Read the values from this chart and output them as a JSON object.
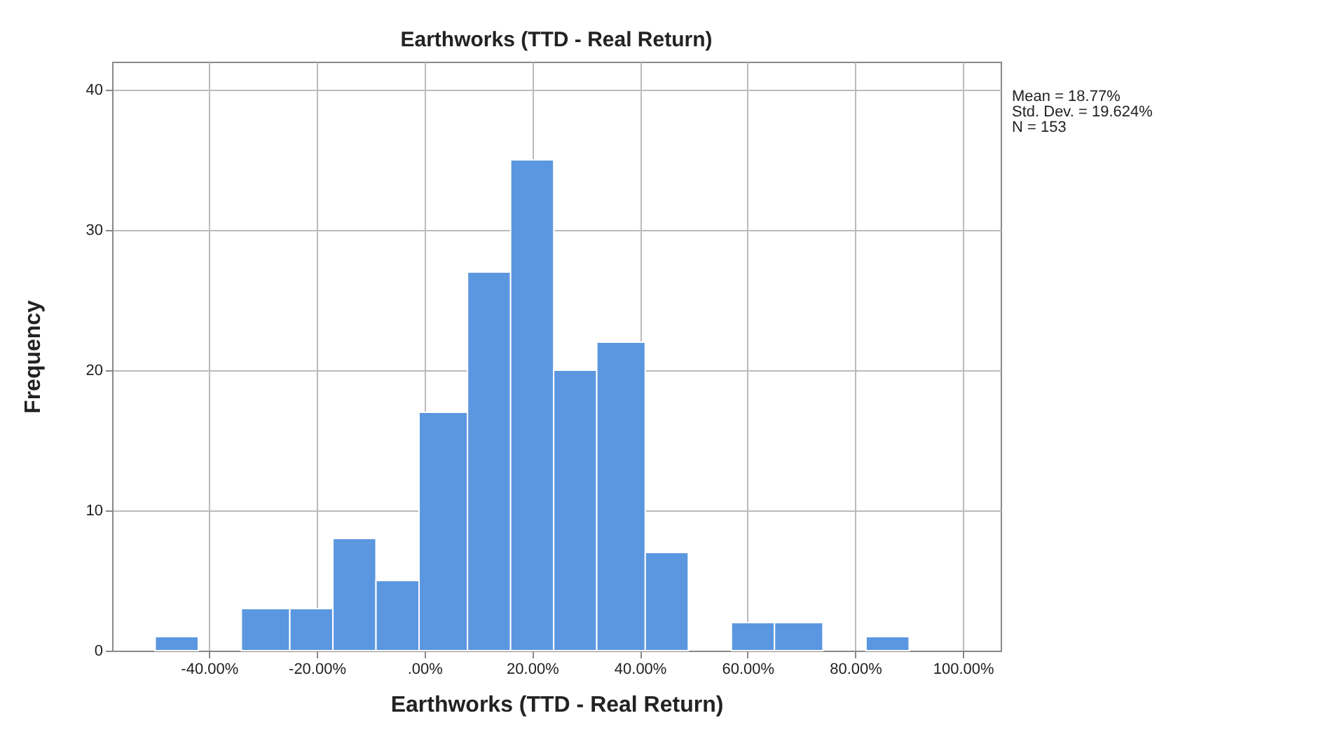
{
  "chart_data": {
    "type": "histogram",
    "title": "Earthworks (TTD - Real Return)",
    "xlabel": "Earthworks (TTD - Real Return)",
    "ylabel": "Frequency",
    "bins": [
      -50,
      -42,
      -34,
      -25,
      -17,
      -9,
      -1,
      8,
      16,
      24,
      32,
      41,
      49,
      57,
      65,
      74,
      82,
      90
    ],
    "values": [
      1,
      0,
      3,
      3,
      8,
      5,
      17,
      27,
      35,
      20,
      22,
      7,
      0,
      2,
      2,
      0,
      1
    ],
    "color": "#5b97e0",
    "xlim": [
      -58,
      107
    ],
    "xticks": [
      {
        "value": -40,
        "label": "-40.00%"
      },
      {
        "value": -20,
        "label": "-20.00%"
      },
      {
        "value": 0,
        "label": ".00%"
      },
      {
        "value": 20,
        "label": "20.00%"
      },
      {
        "value": 40,
        "label": "40.00%"
      },
      {
        "value": 60,
        "label": "60.00%"
      },
      {
        "value": 80,
        "label": "80.00%"
      },
      {
        "value": 100,
        "label": "100.00%"
      }
    ],
    "ylim": [
      0,
      42
    ],
    "yticks": [
      0,
      10,
      20,
      30,
      40
    ],
    "grid": true,
    "annotations": [
      "Mean = 18.77%",
      "Std. Dev. = 19.624%",
      "N = 153"
    ]
  }
}
